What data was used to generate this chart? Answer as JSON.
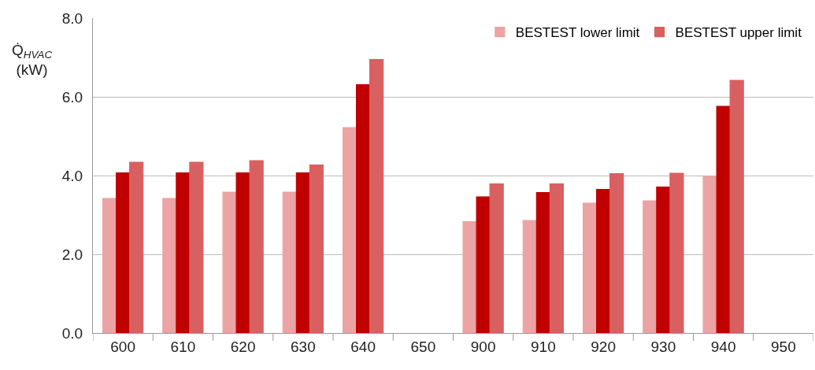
{
  "chart_data": {
    "type": "bar",
    "ylabel": "Q̇$_{HVAC}$ (kW)",
    "categories": [
      "600",
      "610",
      "620",
      "630",
      "640",
      "650",
      "900",
      "910",
      "920",
      "930",
      "940",
      "950"
    ],
    "series": [
      {
        "name": "BESTEST lower limit",
        "color": "#eba3a3",
        "values": [
          3.42,
          3.42,
          3.58,
          3.58,
          5.22,
          null,
          2.83,
          2.86,
          3.3,
          3.36,
          3.98,
          null
        ]
      },
      {
        "color": "#c00000",
        "values": [
          4.07,
          4.07,
          4.07,
          4.07,
          6.31,
          null,
          3.46,
          3.57,
          3.65,
          3.71,
          5.76,
          null
        ]
      },
      {
        "name": "BESTEST upper limit",
        "color": "#d96060",
        "values": [
          4.34,
          4.34,
          4.38,
          4.27,
          6.95,
          null,
          3.79,
          3.79,
          4.05,
          4.06,
          6.42,
          null
        ]
      }
    ],
    "ylim": [
      0,
      8
    ],
    "yticks": [
      {
        "value": 0,
        "label": "0.0"
      },
      {
        "value": 2,
        "label": "2.0"
      },
      {
        "value": 4,
        "label": "4.0"
      },
      {
        "value": 6,
        "label": "6.0"
      },
      {
        "value": 8,
        "label": "8.0"
      }
    ],
    "grid": "y",
    "legend": "top right"
  }
}
